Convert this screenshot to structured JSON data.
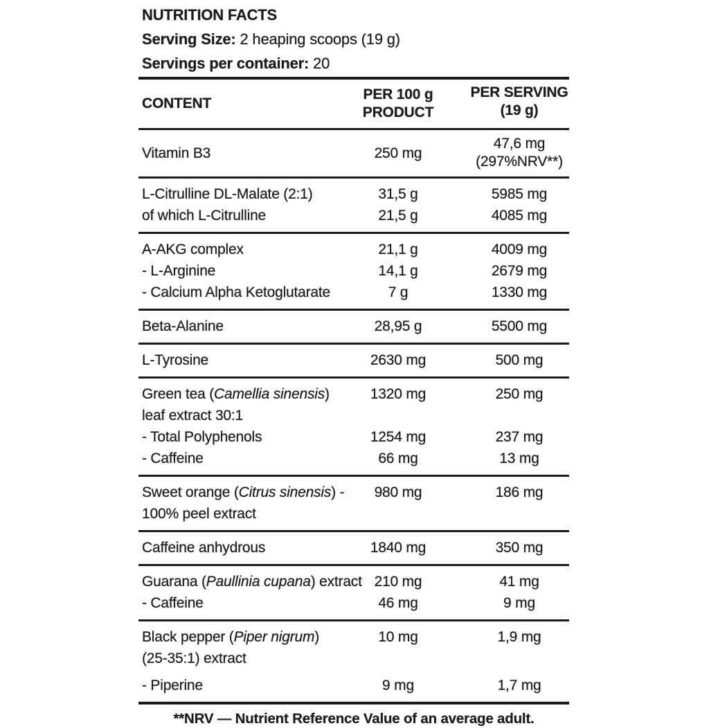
{
  "colors": {
    "background": "#ffffff",
    "text": "#1c1c1c",
    "rule": "#1a1a1a"
  },
  "intro": {
    "title": "NUTRITION FACTS",
    "serving_size_label": "Serving Size:",
    "serving_size_value": " 2 heaping scoops (19 g)",
    "servings_label": "Servings per container:",
    "servings_value": " 20"
  },
  "table": {
    "header": {
      "col1": "CONTENT",
      "col2": [
        "PER 100 g",
        "PRODUCT"
      ],
      "col3": [
        "PER SERVING",
        "(19 g)"
      ]
    },
    "sections": [
      {
        "rows": [
          {
            "name": [
              [
                {
                  "t": "Vitamin B3"
                }
              ]
            ],
            "per100": "250 mg",
            "serving": [
              "47,6 mg",
              "(297%NRV**)"
            ]
          }
        ]
      },
      {
        "rows": [
          {
            "name": [
              [
                {
                  "t": "L-Citrulline DL-Malate (2:1)"
                }
              ]
            ],
            "per100": "31,5 g",
            "serving": [
              "5985 mg"
            ]
          },
          {
            "name": [
              [
                {
                  "t": "of which L-Citrulline"
                }
              ]
            ],
            "per100": "21,5 g",
            "serving": [
              "4085 mg"
            ]
          }
        ]
      },
      {
        "rows": [
          {
            "name": [
              [
                {
                  "t": "A-AKG complex"
                }
              ]
            ],
            "per100": "21,1 g",
            "serving": [
              "4009 mg"
            ]
          },
          {
            "name": [
              [
                {
                  "t": "- L-Arginine"
                }
              ]
            ],
            "per100": "14,1 g",
            "serving": [
              "2679 mg"
            ]
          },
          {
            "name": [
              [
                {
                  "t": "- Calcium Alpha Ketoglutarate"
                }
              ]
            ],
            "per100": "7 g",
            "serving": [
              "1330 mg"
            ]
          }
        ]
      },
      {
        "rows": [
          {
            "name": [
              [
                {
                  "t": "Beta-Alanine"
                }
              ]
            ],
            "per100": "28,95 g",
            "serving": [
              "5500 mg"
            ]
          }
        ]
      },
      {
        "rows": [
          {
            "name": [
              [
                {
                  "t": "L-Tyrosine"
                }
              ]
            ],
            "per100": "2630 mg",
            "serving": [
              "500 mg"
            ]
          }
        ]
      },
      {
        "rows": [
          {
            "name": [
              [
                {
                  "t": "Green tea ("
                },
                {
                  "t": "Camellia sinensis",
                  "i": true
                },
                {
                  "t": ")"
                }
              ],
              [
                {
                  "t": "leaf extract 30:1"
                }
              ]
            ],
            "per100": "1320 mg",
            "serving": [
              "250 mg"
            ]
          },
          {
            "name": [
              [
                {
                  "t": "- Total Polyphenols"
                }
              ]
            ],
            "per100": "1254 mg",
            "serving": [
              "237 mg"
            ]
          },
          {
            "name": [
              [
                {
                  "t": "- Caffeine"
                }
              ]
            ],
            "per100": "66 mg",
            "serving": [
              "13 mg"
            ]
          }
        ]
      },
      {
        "rows": [
          {
            "name": [
              [
                {
                  "t": "Sweet orange ("
                },
                {
                  "t": "Citrus sinensis",
                  "i": true
                },
                {
                  "t": ") -"
                }
              ],
              [
                {
                  "t": "100% peel extract"
                }
              ]
            ],
            "per100": "980 mg",
            "serving": [
              "186 mg"
            ]
          }
        ]
      },
      {
        "rows": [
          {
            "name": [
              [
                {
                  "t": "Caffeine anhydrous"
                }
              ]
            ],
            "per100": "1840 mg",
            "serving": [
              "350 mg"
            ]
          }
        ]
      },
      {
        "rows": [
          {
            "name": [
              [
                {
                  "t": "Guarana ("
                },
                {
                  "t": "Paullinia cupana",
                  "i": true
                },
                {
                  "t": ") extract"
                }
              ]
            ],
            "per100": "210 mg",
            "serving": [
              "41 mg"
            ]
          },
          {
            "name": [
              [
                {
                  "t": "- Caffeine"
                }
              ]
            ],
            "per100": "46 mg",
            "serving": [
              "9 mg"
            ]
          }
        ]
      },
      {
        "rows": [
          {
            "name": [
              [
                {
                  "t": "Black pepper ("
                },
                {
                  "t": "Piper nigrum",
                  "i": true
                },
                {
                  "t": ")"
                }
              ],
              [
                {
                  "t": "(25-35:1) extract"
                }
              ]
            ],
            "per100": "10 mg",
            "serving": [
              "1,9 mg"
            ]
          },
          {
            "name": [
              [
                {
                  "t": "- Piperine"
                }
              ]
            ],
            "per100": "9 mg",
            "serving": [
              "1,7 mg"
            ]
          }
        ]
      }
    ]
  },
  "footnote": "**NRV — Nutrient Reference Value of an average adult."
}
